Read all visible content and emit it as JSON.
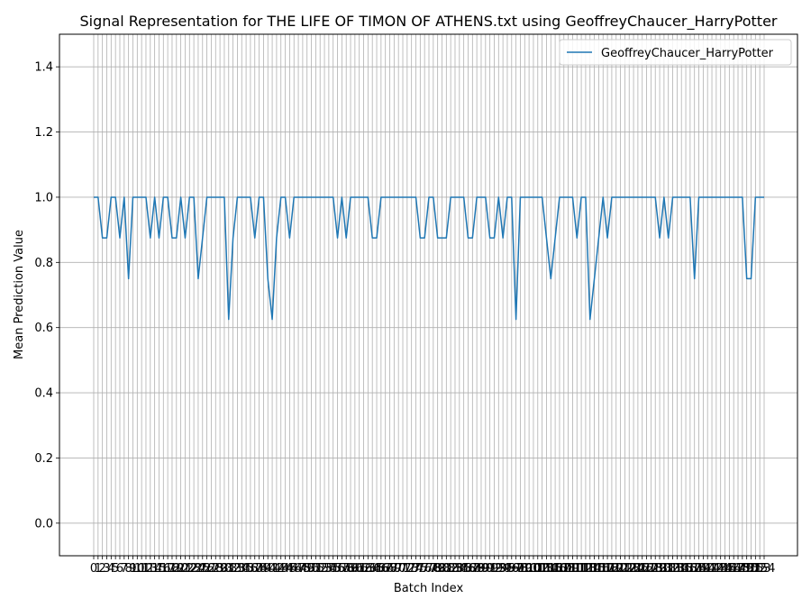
{
  "chart_data": {
    "type": "line",
    "title": "Signal Representation for THE LIFE OF TIMON OF ATHENS.txt using GeoffreyChaucer_HarryPotter",
    "xlabel": "Batch Index",
    "ylabel": "Mean Prediction Value",
    "ylim": [
      -0.1,
      1.5
    ],
    "yticks": [
      "0.0",
      "0.2",
      "0.4",
      "0.6",
      "0.8",
      "1.0",
      "1.2",
      "1.4"
    ],
    "grid": true,
    "legend_position": "top-right",
    "colors": {
      "series": "#1f77b4",
      "grid": "#b0b0b0"
    },
    "series": [
      {
        "name": "GeoffreyChaucer_HarryPotter",
        "values": [
          1,
          1,
          0.875,
          0.875,
          1,
          1,
          0.875,
          1,
          0.75,
          1,
          1,
          1,
          1,
          0.875,
          1,
          0.875,
          1,
          1,
          0.875,
          0.875,
          1,
          0.875,
          1,
          1,
          0.75,
          0.875,
          1,
          1,
          1,
          1,
          1,
          0.625,
          0.875,
          1,
          1,
          1,
          1,
          0.875,
          1,
          1,
          0.75,
          0.625,
          0.875,
          1,
          1,
          0.875,
          1,
          1,
          1,
          1,
          1,
          1,
          1,
          1,
          1,
          1,
          0.875,
          1,
          0.875,
          1,
          1,
          1,
          1,
          1,
          0.875,
          0.875,
          1,
          1,
          1,
          1,
          1,
          1,
          1,
          1,
          1,
          0.875,
          0.875,
          1,
          1,
          0.875,
          0.875,
          0.875,
          1,
          1,
          1,
          1,
          0.875,
          0.875,
          1,
          1,
          1,
          0.875,
          0.875,
          1,
          0.875,
          1,
          1,
          0.625,
          1,
          1,
          1,
          1,
          1,
          1,
          0.875,
          0.75,
          0.875,
          1,
          1,
          1,
          1,
          0.875,
          1,
          1,
          0.625,
          0.75,
          0.875,
          1,
          0.875,
          1,
          1,
          1,
          1,
          1,
          1,
          1,
          1,
          1,
          1,
          1,
          0.875,
          1,
          0.875,
          1,
          1,
          1,
          1,
          1,
          0.75,
          1,
          1,
          1,
          1,
          1,
          1,
          1,
          1,
          1,
          1,
          1,
          0.75,
          0.75,
          1,
          1,
          1
        ]
      }
    ]
  }
}
